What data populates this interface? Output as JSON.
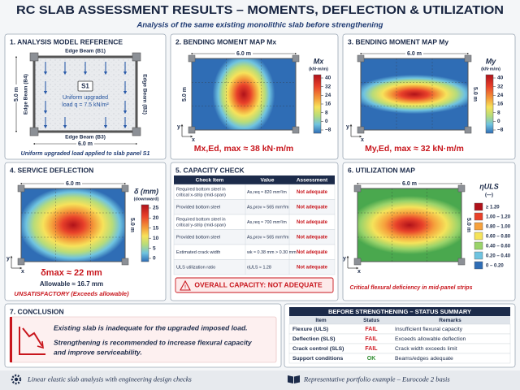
{
  "header": {
    "title": "RC SLAB ASSESSMENT RESULTS – MOMENTS, DEFLECTION & UTILIZATION",
    "subtitle": "Analysis of the same existing monolithic slab before strengthening"
  },
  "axis_labels": [
    "x",
    "y"
  ],
  "model": {
    "title": "1. ANALYSIS MODEL REFERENCE",
    "beams": [
      "Edge Beam (B1)",
      "Edge Beam (B2)",
      "Edge Beam (B3)",
      "Edge Beam (B4)"
    ],
    "panel": "S1",
    "load": [
      "Uniform upgraded",
      "load q = 7.5 kN/m²"
    ],
    "width": "6.0 m",
    "height": "5.0 m",
    "caption": "Uniform upgraded load applied to slab panel S1"
  },
  "mx": {
    "title": "2. BENDING MOMENT MAP Mx",
    "width": "6.0 m",
    "height": "5.0 m",
    "legend_title": "Mx",
    "legend_unit": "(kN·m/m)",
    "ticks": [
      40,
      32,
      24,
      16,
      8,
      0,
      {
        "value": -8,
        "label": "−8"
      }
    ],
    "result": "Mx,Ed, max ≈ 38 kN·m/m"
  },
  "my": {
    "title": "3. BENDING MOMENT MAP My",
    "width": "6.0 m",
    "height": "5.0 m",
    "legend_title": "My",
    "legend_unit": "(kN·m/m)",
    "ticks": [
      40,
      32,
      24,
      16,
      8,
      0,
      {
        "value": -8,
        "label": "−8"
      }
    ],
    "result": "My,Ed, max ≈ 32 kN·m/m"
  },
  "deflection": {
    "title": "4. SERVICE DEFLECTION",
    "width": "6.0 m",
    "height": "5.0 m",
    "legend_title": "δ (mm)",
    "legend_unit": "(downward)",
    "ticks": [
      25,
      20,
      15,
      10,
      5,
      0
    ],
    "result": "δmax ≈ 22 mm",
    "allowable": "Allowable ≈ 16.7 mm",
    "verdict": "UNSATISFACTORY (Exceeds allowable)"
  },
  "capacity": {
    "title": "5. CAPACITY CHECK",
    "columns": [
      "Check Item",
      "Value",
      "Assessment"
    ],
    "rows": [
      {
        "item": [
          "Required bottom steel in",
          "critical x-strip (mid-span)"
        ],
        "value": "As,req ≈ 820 mm²/m",
        "assessment": "Not adequate"
      },
      {
        "item": [
          "Provided bottom steel"
        ],
        "value": "As,prov ≈ 565 mm²/m",
        "assessment": "Not adequate"
      },
      {
        "item": [
          "Required bottom steel in",
          "critical y-strip (mid-span)"
        ],
        "value": "As,req ≈ 700 mm²/m",
        "assessment": "Not adequate"
      },
      {
        "item": [
          "Provided bottom steel"
        ],
        "value": "As,prov ≈ 565 mm²/m",
        "assessment": "Not adequate"
      },
      {
        "item": [
          "Estimated crack width"
        ],
        "value": "wk ≈ 0.38 mm > 0.30 mm",
        "assessment": "Not adequate"
      },
      {
        "item": [
          "ULS utilization ratio"
        ],
        "value": "ηULS ≈ 1.28",
        "assessment": "Not adequate"
      }
    ],
    "overall": "OVERALL CAPACITY: NOT ADEQUATE"
  },
  "utilization": {
    "title": "6. UTILIZATION MAP",
    "width": "6.0 m",
    "height": "5.0 m",
    "legend_title": "ηULS",
    "legend_unit": "(—)",
    "bins": [
      {
        "label": "≥ 1.20",
        "color": "#b0121a"
      },
      {
        "label": "1.00 – 1.20",
        "color": "#e8412a"
      },
      {
        "label": "0.80 – 1.00",
        "color": "#f6a13c"
      },
      {
        "label": "0.60 – 0.80",
        "color": "#f5e35a"
      },
      {
        "label": "0.40 – 0.60",
        "color": "#9ad36a"
      },
      {
        "label": "0.20 – 0.40",
        "color": "#6fc3e0"
      },
      {
        "label": "0 – 0.20",
        "color": "#2f6db5"
      }
    ],
    "caption": "Critical flexural deficiency in mid-panel strips"
  },
  "conclusion": {
    "title": "7. CONCLUSION",
    "lines": [
      "Existing slab is inadequate for the upgraded imposed load.",
      "Strengthening is recommended to increase flexural capacity",
      "and improve serviceability."
    ]
  },
  "summary": {
    "title": "BEFORE STRENGTHENING – STATUS SUMMARY",
    "columns": [
      "Item",
      "Status",
      "Remarks"
    ],
    "rows": [
      {
        "item": "Flexure (ULS)",
        "status": "FAIL",
        "remarks": "Insufficient flexural capacity",
        "color": "#d0202a"
      },
      {
        "item": "Deflection (SLS)",
        "status": "FAIL",
        "remarks": "Exceeds allowable deflection",
        "color": "#d0202a"
      },
      {
        "item": "Crack control (SLS)",
        "status": "FAIL",
        "remarks": "Crack width exceeds limit",
        "color": "#d0202a"
      },
      {
        "item": "Support conditions",
        "status": "OK",
        "remarks": "Beams/edges adequate",
        "color": "#2e8b2e"
      }
    ]
  },
  "footer": {
    "left": "Linear elastic slab analysis with engineering design checks",
    "right": "Representative portfolio example – Eurocode 2 basis"
  }
}
